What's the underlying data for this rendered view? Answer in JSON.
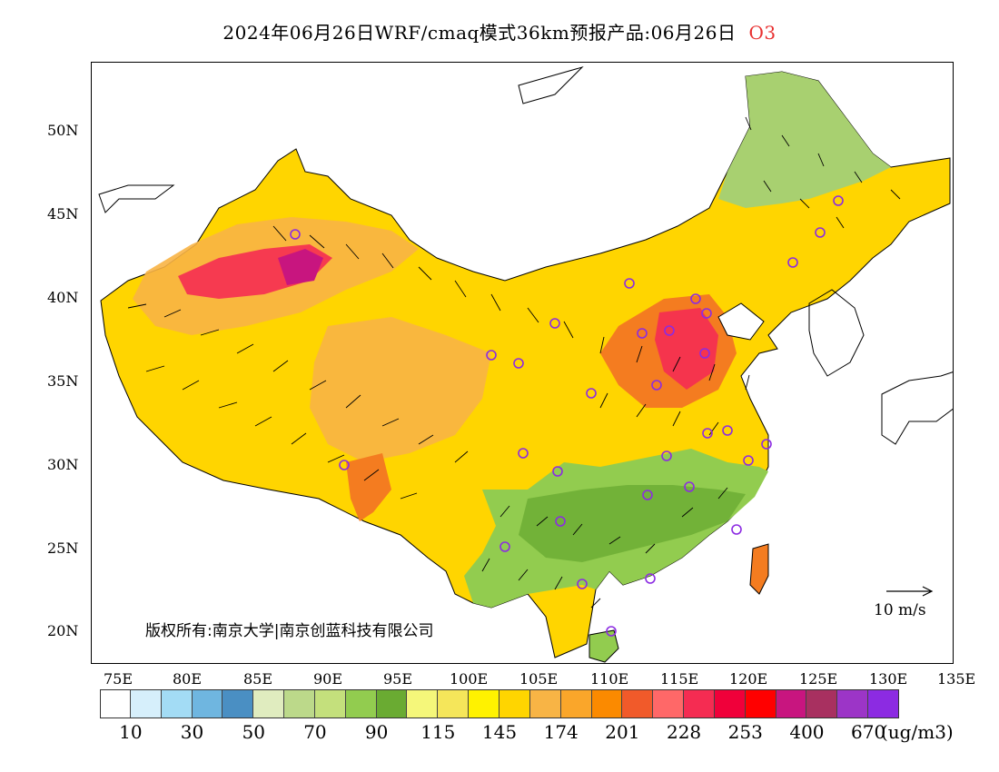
{
  "title": {
    "main": "2024年06月26日WRF/cmaq模式36km预报产品:06月26日",
    "species": "O3"
  },
  "axes": {
    "lat_labels": [
      "50N",
      "45N",
      "40N",
      "35N",
      "30N",
      "25N",
      "20N"
    ],
    "lon_labels": [
      "75E",
      "80E",
      "85E",
      "90E",
      "95E",
      "100E",
      "105E",
      "110E",
      "115E",
      "120E",
      "125E",
      "130E",
      "135E"
    ]
  },
  "copyright": "版权所有:南京大学|南京创蓝科技有限公司",
  "wind_scale": {
    "label": "10 m/s"
  },
  "legend": {
    "colors": [
      "#ffffff",
      "#d6effb",
      "#a3dcf5",
      "#6fb6e0",
      "#4a8fc3",
      "#e0ecbf",
      "#bcd98a",
      "#c4e07c",
      "#92cc4f",
      "#6aab32",
      "#f5f77a",
      "#f5e65a",
      "#fff200",
      "#ffd500",
      "#f8b445",
      "#faa62a",
      "#fb8a00",
      "#f15a2a",
      "#ff6868",
      "#f52c52",
      "#f0003a",
      "#ff0000",
      "#c8157f",
      "#a83060",
      "#9c35c7",
      "#8c2be2"
    ],
    "labels": [
      "10",
      "30",
      "50",
      "70",
      "90",
      "115",
      "145",
      "174",
      "201",
      "228",
      "253",
      "400",
      "670"
    ],
    "unit": "(ug/m3)"
  },
  "map_colors": {
    "low": "#6aab32",
    "low_mid": "#a8d070",
    "mid": "#f5e65a",
    "mid_high": "#ffd500",
    "high": "#f8b445",
    "higher": "#f47c20",
    "peak": "#f52c52",
    "max": "#c8157f",
    "city_marker": "#8c2be2",
    "border": "#000000"
  }
}
